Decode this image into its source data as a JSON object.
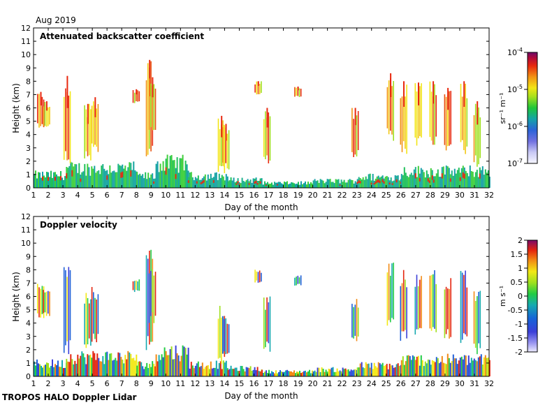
{
  "header": {
    "period": "Aug 2019"
  },
  "footer": {
    "credit": "TROPOS HALO Doppler Lidar"
  },
  "chart_data": [
    {
      "type": "heatmap",
      "title": "Attenuated backscatter coefficient",
      "xlabel": "Day of the month",
      "ylabel": "Height (km)",
      "xlim": [
        1,
        32
      ],
      "ylim": [
        0,
        12
      ],
      "xticks": [
        "1",
        "2",
        "3",
        "4",
        "5",
        "6",
        "7",
        "8",
        "9",
        "10",
        "11",
        "12",
        "13",
        "14",
        "15",
        "16",
        "17",
        "18",
        "19",
        "20",
        "21",
        "22",
        "23",
        "24",
        "25",
        "26",
        "27",
        "28",
        "29",
        "30",
        "31",
        "32"
      ],
      "yticks": [
        "0",
        "1",
        "2",
        "3",
        "4",
        "5",
        "6",
        "7",
        "8",
        "9",
        "10",
        "11",
        "12"
      ],
      "colorbar": {
        "label": "sr⁻¹ m⁻¹",
        "scale": "log",
        "ticks": [
          {
            "base": "10",
            "exp": "-7"
          },
          {
            "base": "10",
            "exp": "-6"
          },
          {
            "base": "10",
            "exp": "-5"
          },
          {
            "base": "10",
            "exp": "-4"
          }
        ]
      },
      "layers": [
        {
          "x0": 1.0,
          "x1": 3.2,
          "top": 1.3,
          "band": "boundary-layer"
        },
        {
          "x0": 3.2,
          "x1": 8.0,
          "top": 2.0,
          "band": "boundary-layer"
        },
        {
          "x0": 8.0,
          "x1": 9.3,
          "top": 1.2,
          "band": "boundary-layer"
        },
        {
          "x0": 9.3,
          "x1": 11.5,
          "top": 2.5,
          "band": "boundary-layer"
        },
        {
          "x0": 11.5,
          "x1": 14.2,
          "top": 1.2,
          "band": "boundary-layer"
        },
        {
          "x0": 14.2,
          "x1": 16.5,
          "top": 0.8,
          "band": "boundary-layer"
        },
        {
          "x0": 16.5,
          "x1": 20.0,
          "top": 0.5,
          "band": "boundary-layer"
        },
        {
          "x0": 20.0,
          "x1": 23.0,
          "top": 0.7,
          "band": "boundary-layer"
        },
        {
          "x0": 23.0,
          "x1": 26.0,
          "top": 1.1,
          "band": "boundary-layer"
        },
        {
          "x0": 26.0,
          "x1": 32.0,
          "top": 1.7,
          "band": "boundary-layer"
        }
      ],
      "clouds": [
        {
          "x": 1.5,
          "top": 7.2,
          "bottom": 4.3
        },
        {
          "x": 1.9,
          "top": 6.5,
          "bottom": 4.5
        },
        {
          "x": 3.3,
          "top": 8.4,
          "bottom": 1.5
        },
        {
          "x": 4.7,
          "top": 6.3,
          "bottom": 2.0
        },
        {
          "x": 5.2,
          "top": 6.8,
          "bottom": 2.5
        },
        {
          "x": 8.0,
          "top": 7.4,
          "bottom": 6.3
        },
        {
          "x": 8.9,
          "top": 9.6,
          "bottom": 1.8
        },
        {
          "x": 9.1,
          "top": 8.3,
          "bottom": 4.0
        },
        {
          "x": 13.8,
          "top": 5.4,
          "bottom": 0.8
        },
        {
          "x": 14.1,
          "top": 4.8,
          "bottom": 1.2
        },
        {
          "x": 16.3,
          "top": 8.0,
          "bottom": 7.0
        },
        {
          "x": 16.9,
          "top": 6.0,
          "bottom": 1.8
        },
        {
          "x": 19.0,
          "top": 7.6,
          "bottom": 6.8
        },
        {
          "x": 22.9,
          "top": 6.0,
          "bottom": 2.3
        },
        {
          "x": 25.3,
          "top": 8.6,
          "bottom": 3.5
        },
        {
          "x": 26.2,
          "top": 8.0,
          "bottom": 2.5
        },
        {
          "x": 27.2,
          "top": 7.9,
          "bottom": 3.0
        },
        {
          "x": 28.2,
          "top": 8.0,
          "bottom": 3.2
        },
        {
          "x": 29.2,
          "top": 7.5,
          "bottom": 2.8
        },
        {
          "x": 30.3,
          "top": 8.0,
          "bottom": 2.5
        },
        {
          "x": 31.2,
          "top": 6.5,
          "bottom": 1.5
        }
      ]
    },
    {
      "type": "heatmap",
      "title": "Doppler velocity",
      "xlabel": "Day of the month",
      "ylabel": "Height (km)",
      "xlim": [
        1,
        32
      ],
      "ylim": [
        0,
        12
      ],
      "xticks": [
        "1",
        "2",
        "3",
        "4",
        "5",
        "6",
        "7",
        "8",
        "9",
        "10",
        "11",
        "12",
        "13",
        "14",
        "15",
        "16",
        "17",
        "18",
        "19",
        "20",
        "21",
        "22",
        "23",
        "24",
        "25",
        "26",
        "27",
        "28",
        "29",
        "30",
        "31",
        "32"
      ],
      "yticks": [
        "0",
        "1",
        "2",
        "3",
        "4",
        "5",
        "6",
        "7",
        "8",
        "9",
        "10",
        "11",
        "12"
      ],
      "colorbar": {
        "label": "m s⁻¹",
        "scale": "linear",
        "ticks": [
          "-2",
          "-1.5",
          "-1",
          "-0.5",
          "0",
          "0.5",
          "1",
          "1.5",
          "2"
        ]
      },
      "layers": [
        {
          "x0": 1.0,
          "x1": 3.2,
          "top": 1.3,
          "band": "boundary-layer"
        },
        {
          "x0": 3.2,
          "x1": 8.0,
          "top": 2.0,
          "band": "boundary-layer"
        },
        {
          "x0": 8.0,
          "x1": 9.3,
          "top": 1.2,
          "band": "boundary-layer"
        },
        {
          "x0": 9.3,
          "x1": 11.5,
          "top": 2.5,
          "band": "boundary-layer"
        },
        {
          "x0": 11.5,
          "x1": 14.2,
          "top": 1.2,
          "band": "boundary-layer"
        },
        {
          "x0": 14.2,
          "x1": 16.5,
          "top": 0.8,
          "band": "boundary-layer"
        },
        {
          "x0": 16.5,
          "x1": 20.0,
          "top": 0.5,
          "band": "boundary-layer"
        },
        {
          "x0": 20.0,
          "x1": 23.0,
          "top": 0.7,
          "band": "boundary-layer"
        },
        {
          "x0": 23.0,
          "x1": 26.0,
          "top": 1.1,
          "band": "boundary-layer"
        },
        {
          "x0": 26.0,
          "x1": 32.0,
          "top": 1.7,
          "band": "boundary-layer"
        }
      ],
      "clouds": [
        {
          "x": 1.5,
          "top": 7.2,
          "bottom": 4.3
        },
        {
          "x": 1.9,
          "top": 6.5,
          "bottom": 4.5
        },
        {
          "x": 3.3,
          "top": 8.4,
          "bottom": 1.5
        },
        {
          "x": 4.7,
          "top": 6.3,
          "bottom": 2.0
        },
        {
          "x": 5.2,
          "top": 6.8,
          "bottom": 2.5
        },
        {
          "x": 8.0,
          "top": 7.4,
          "bottom": 6.3
        },
        {
          "x": 8.9,
          "top": 9.6,
          "bottom": 1.8
        },
        {
          "x": 9.1,
          "top": 8.3,
          "bottom": 4.0
        },
        {
          "x": 13.8,
          "top": 5.4,
          "bottom": 0.8
        },
        {
          "x": 14.1,
          "top": 4.8,
          "bottom": 1.2
        },
        {
          "x": 16.3,
          "top": 8.0,
          "bottom": 7.0
        },
        {
          "x": 16.9,
          "top": 6.0,
          "bottom": 1.8
        },
        {
          "x": 19.0,
          "top": 7.6,
          "bottom": 6.8
        },
        {
          "x": 22.9,
          "top": 6.0,
          "bottom": 2.3
        },
        {
          "x": 25.3,
          "top": 8.6,
          "bottom": 3.5
        },
        {
          "x": 26.2,
          "top": 8.0,
          "bottom": 2.5
        },
        {
          "x": 27.2,
          "top": 7.9,
          "bottom": 3.0
        },
        {
          "x": 28.2,
          "top": 8.0,
          "bottom": 3.2
        },
        {
          "x": 29.2,
          "top": 7.5,
          "bottom": 2.8
        },
        {
          "x": 30.3,
          "top": 8.0,
          "bottom": 2.5
        },
        {
          "x": 31.2,
          "top": 6.5,
          "bottom": 1.5
        }
      ]
    }
  ]
}
